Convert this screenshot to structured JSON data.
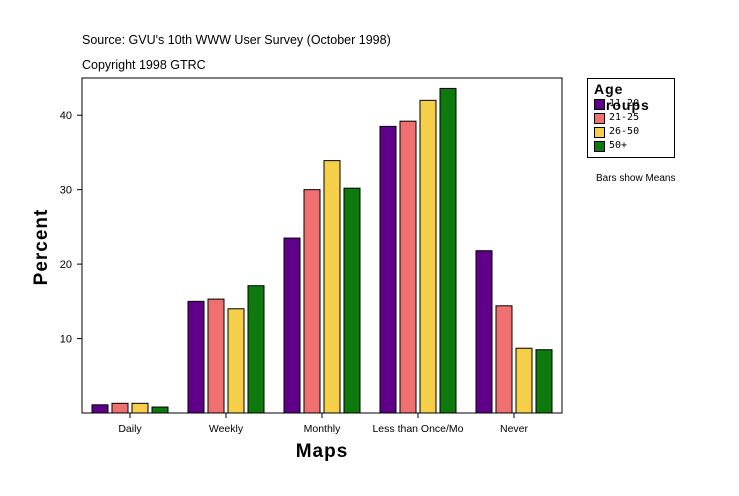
{
  "source_lines": [
    "Source: GVU's 10th WWW User Survey (October 1998)",
    "Copyright 1998 GTRC"
  ],
  "note": "Bars show Means",
  "chart_data": {
    "type": "bar",
    "title": "",
    "xlabel": "Maps",
    "ylabel": "Percent",
    "ylim": [
      0,
      45
    ],
    "yticks": [
      10,
      20,
      30,
      40
    ],
    "categories": [
      "Daily",
      "Weekly",
      "Monthly",
      "Less than Once/Mo",
      "Never"
    ],
    "legend_title": "Age Groups",
    "series": [
      {
        "name": "11-20",
        "color": "#5f0089",
        "values": [
          1.1,
          15.0,
          23.5,
          38.5,
          21.8
        ]
      },
      {
        "name": "21-25",
        "color": "#f07070",
        "values": [
          1.3,
          15.3,
          30.0,
          39.2,
          14.4
        ]
      },
      {
        "name": "26-50",
        "color": "#f5cf47",
        "values": [
          1.3,
          14.0,
          33.9,
          42.0,
          8.7
        ]
      },
      {
        "name": "50+",
        "color": "#0e7a0e",
        "values": [
          0.8,
          17.1,
          30.2,
          43.6,
          8.5
        ]
      }
    ]
  }
}
